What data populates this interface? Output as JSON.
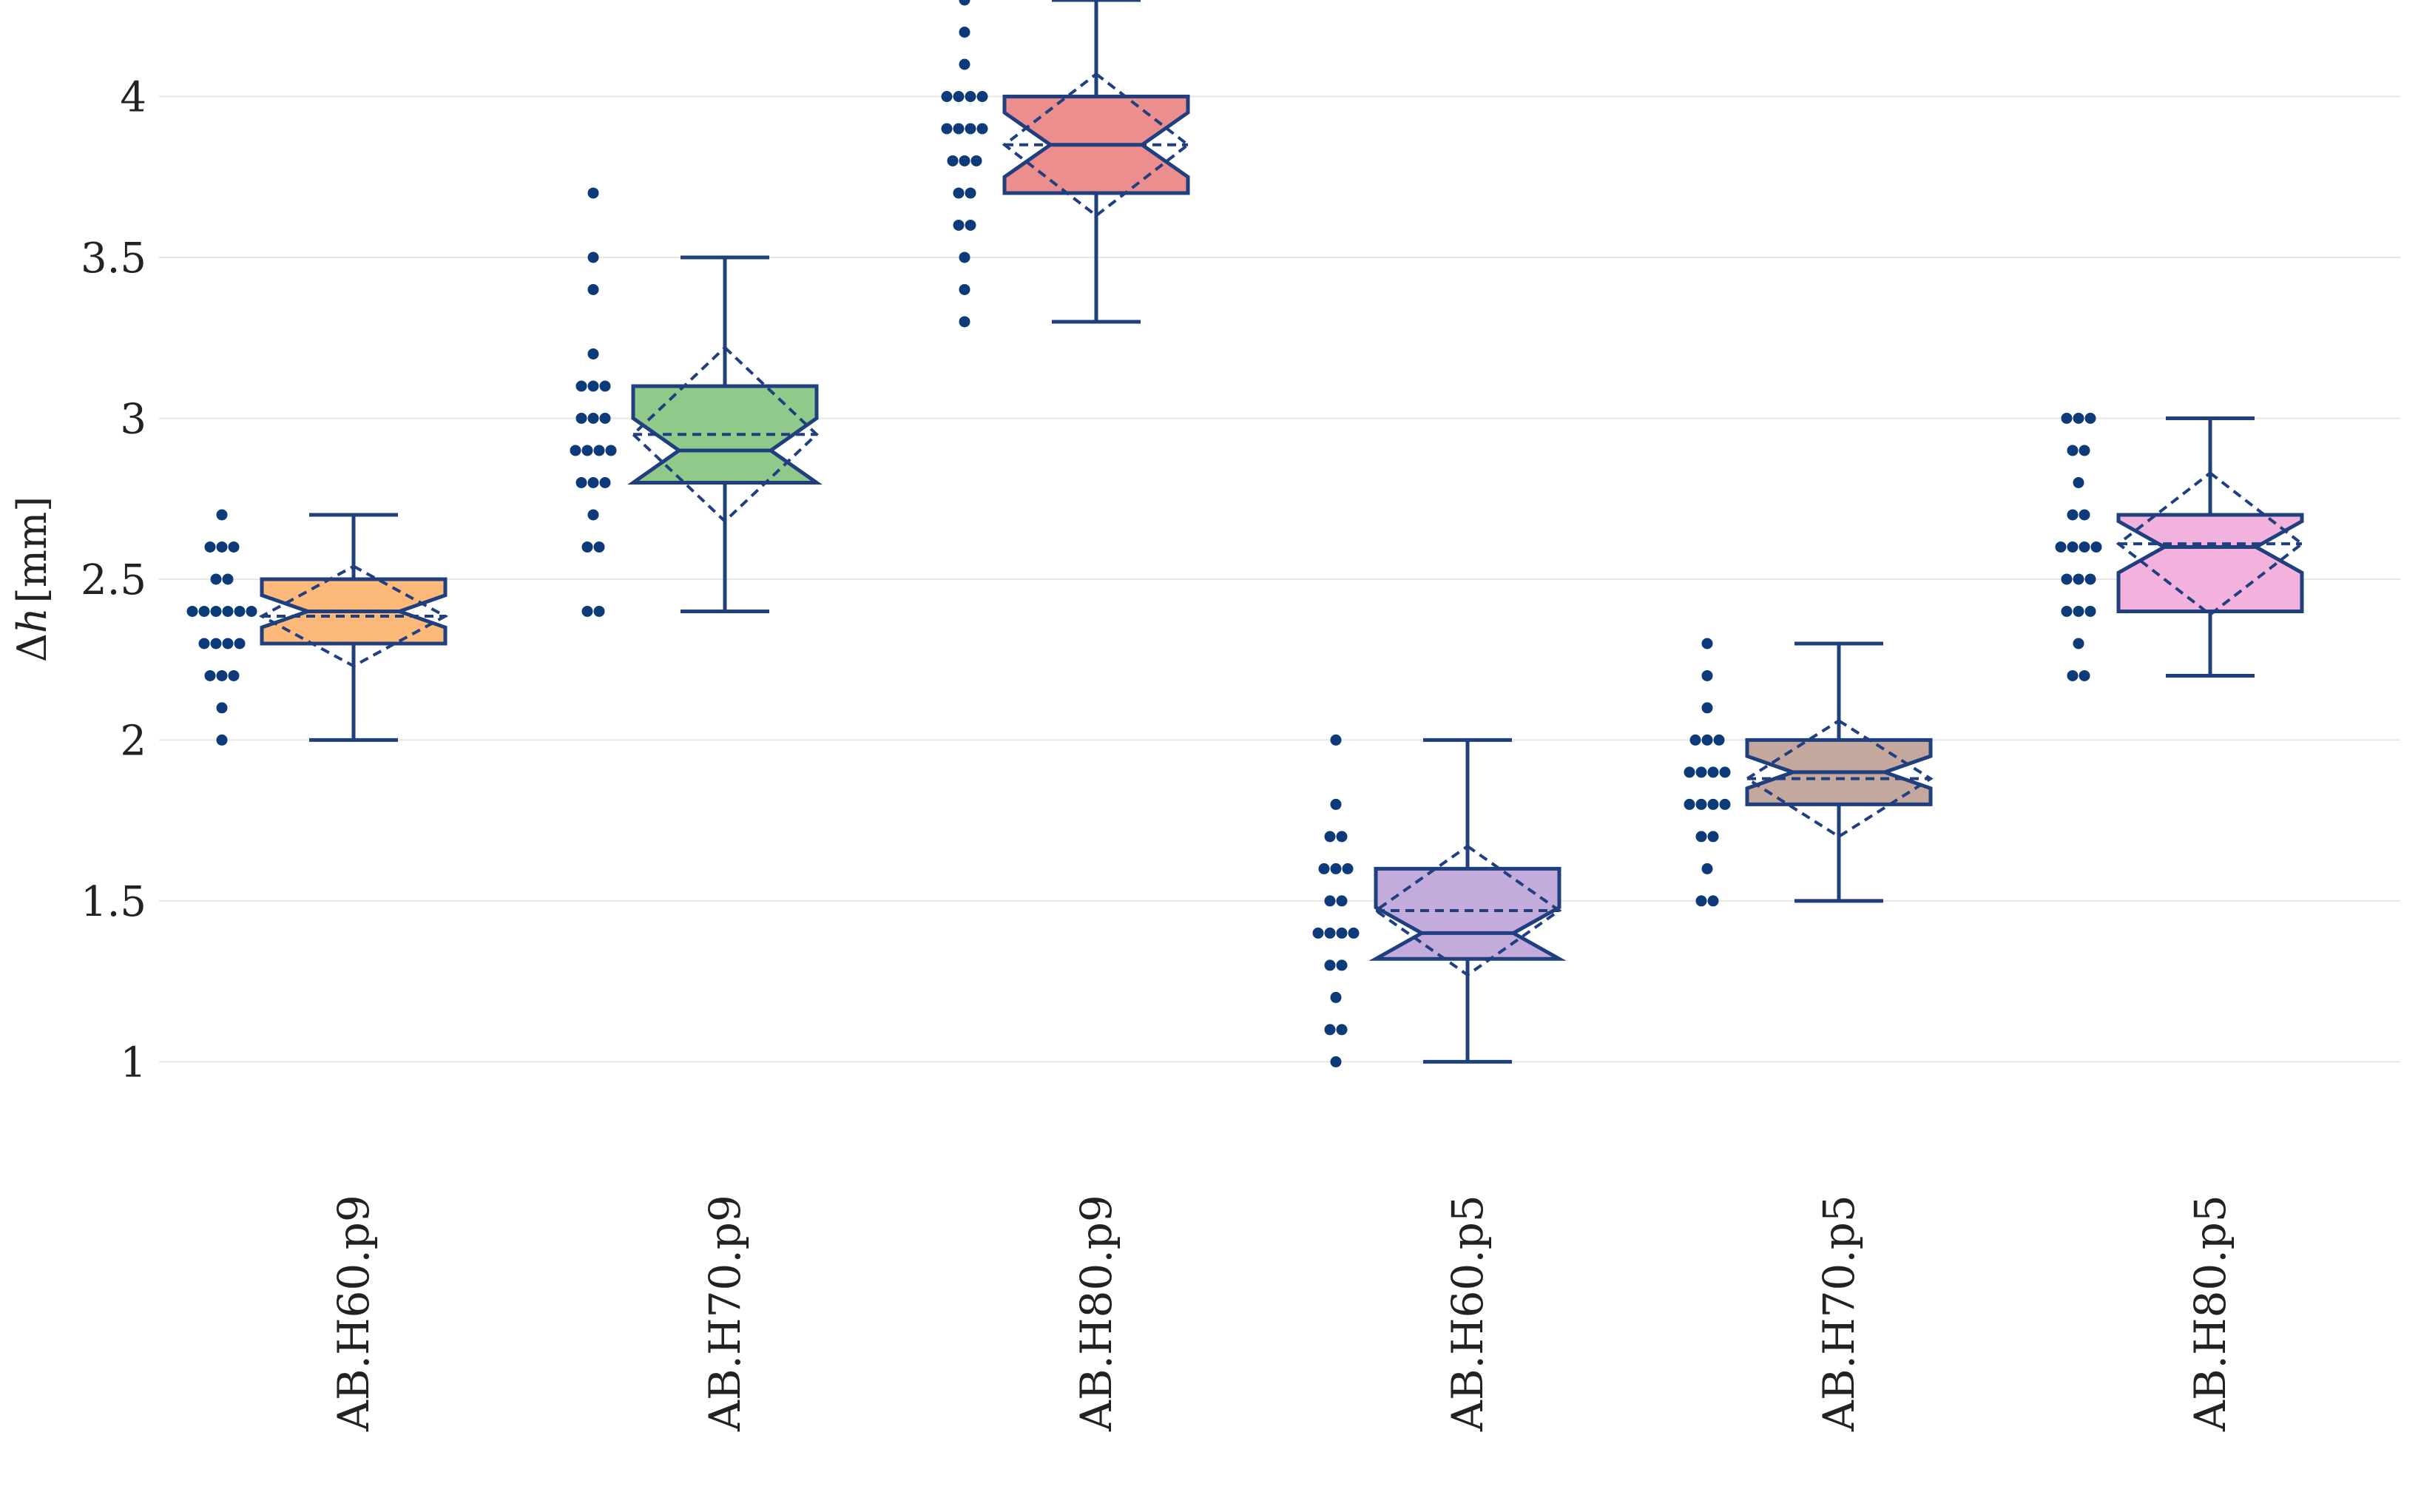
{
  "chart_data": {
    "type": "box",
    "title": "",
    "xlabel": "",
    "ylabel": "Δh [mm]",
    "ylabel_parts": {
      "symbol": "Δ",
      "var": "h",
      "unit": "[mm]"
    },
    "ylim": [
      0.84,
      4.3
    ],
    "yticks": [
      1,
      1.5,
      2,
      2.5,
      3,
      3.5,
      4
    ],
    "ytick_labels": [
      "1",
      "1.5",
      "2",
      "2.5",
      "3",
      "3.5",
      "4"
    ],
    "grid": true,
    "notched": true,
    "show_mean_sd": true,
    "show_points": true,
    "colors": {
      "outline": "#1F3F7F",
      "points": "#0D3B7A",
      "grid": "#E6E6E6",
      "axis_text": "#222222"
    },
    "categories": [
      "AB.H60.p9",
      "AB.H70.p9",
      "AB.H80.p9",
      "AB.H60.p5",
      "AB.H70.p5",
      "AB.H80.p5"
    ],
    "series": [
      {
        "name": "AB.H60.p9",
        "fill": "#FDB97A",
        "min": 2.0,
        "q1": 2.3,
        "median": 2.4,
        "q3": 2.5,
        "max": 2.7,
        "notch_low": 2.35,
        "notch_high": 2.45,
        "mean": 2.385,
        "sd": 0.155,
        "points": [
          2.7,
          2.6,
          2.6,
          2.6,
          2.5,
          2.5,
          2.4,
          2.4,
          2.4,
          2.4,
          2.4,
          2.4,
          2.3,
          2.3,
          2.3,
          2.3,
          2.2,
          2.2,
          2.2,
          2.1,
          2.0
        ]
      },
      {
        "name": "AB.H70.p9",
        "fill": "#90C98A",
        "min": 2.4,
        "q1": 2.8,
        "median": 2.9,
        "q3": 3.1,
        "max": 3.5,
        "notch_low": 2.8,
        "notch_high": 3.0,
        "mean": 2.95,
        "sd": 0.27,
        "points": [
          3.7,
          3.5,
          3.4,
          3.2,
          3.1,
          3.1,
          3.1,
          3.0,
          3.0,
          3.0,
          2.9,
          2.9,
          2.9,
          2.9,
          2.8,
          2.8,
          2.8,
          2.7,
          2.6,
          2.6,
          2.4,
          2.4
        ]
      },
      {
        "name": "AB.H80.p9",
        "fill": "#EC8E8E",
        "min": 3.3,
        "q1": 3.7,
        "median": 3.85,
        "q3": 4.0,
        "max": 4.3,
        "notch_low": 3.75,
        "notch_high": 3.95,
        "mean": 3.85,
        "sd": 0.22,
        "points": [
          4.3,
          4.2,
          4.1,
          4.0,
          4.0,
          4.0,
          4.0,
          3.9,
          3.9,
          3.9,
          3.9,
          3.8,
          3.8,
          3.8,
          3.7,
          3.7,
          3.6,
          3.6,
          3.5,
          3.4,
          3.3
        ]
      },
      {
        "name": "AB.H60.p5",
        "fill": "#C3ABDC",
        "min": 1.0,
        "q1": 1.32,
        "median": 1.4,
        "q3": 1.6,
        "max": 2.0,
        "notch_low": 1.32,
        "notch_high": 1.48,
        "mean": 1.47,
        "sd": 0.2,
        "points": [
          2.0,
          1.8,
          1.7,
          1.7,
          1.6,
          1.6,
          1.6,
          1.5,
          1.5,
          1.4,
          1.4,
          1.4,
          1.4,
          1.3,
          1.3,
          1.2,
          1.1,
          1.1,
          1.0
        ]
      },
      {
        "name": "AB.H70.p5",
        "fill": "#C4A89E",
        "min": 1.5,
        "q1": 1.8,
        "median": 1.9,
        "q3": 2.0,
        "max": 2.3,
        "notch_low": 1.85,
        "notch_high": 1.95,
        "mean": 1.88,
        "sd": 0.18,
        "points": [
          2.3,
          2.2,
          2.1,
          2.0,
          2.0,
          2.0,
          1.9,
          1.9,
          1.9,
          1.9,
          1.8,
          1.8,
          1.8,
          1.8,
          1.7,
          1.7,
          1.6,
          1.5,
          1.5
        ]
      },
      {
        "name": "AB.H80.p5",
        "fill": "#F3B2DD",
        "min": 2.2,
        "q1": 2.4,
        "median": 2.6,
        "q3": 2.7,
        "max": 3.0,
        "notch_low": 2.52,
        "notch_high": 2.68,
        "mean": 2.61,
        "sd": 0.22,
        "points": [
          3.0,
          3.0,
          3.0,
          2.9,
          2.9,
          2.8,
          2.7,
          2.7,
          2.6,
          2.6,
          2.6,
          2.6,
          2.5,
          2.5,
          2.5,
          2.4,
          2.4,
          2.4,
          2.3,
          2.2,
          2.2
        ]
      }
    ]
  }
}
